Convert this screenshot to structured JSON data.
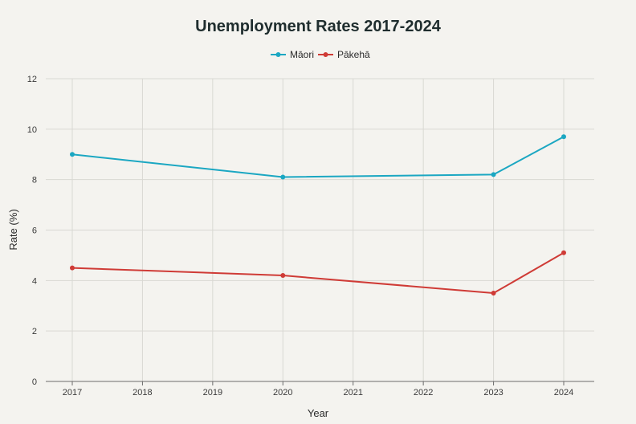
{
  "chart_data": {
    "type": "line",
    "title": "Unemployment Rates 2017-2024",
    "xlabel": "Year",
    "ylabel": "Rate (%)",
    "x": [
      2017,
      2018,
      2019,
      2020,
      2021,
      2022,
      2023,
      2024
    ],
    "x_tick_labels": [
      "2017",
      "2018",
      "2019",
      "2020",
      "2021",
      "2022",
      "2023",
      "2024"
    ],
    "ylim": [
      0,
      12
    ],
    "y_ticks": [
      0,
      2,
      4,
      6,
      8,
      10,
      12
    ],
    "y_tick_labels": [
      "0",
      "2",
      "4",
      "6",
      "8",
      "10",
      "12"
    ],
    "grid": true,
    "legend_position": "top-center",
    "series": [
      {
        "name": "Māori",
        "color": "#1ba7c2",
        "points": [
          {
            "x": 2017,
            "y": 9.0
          },
          {
            "x": 2020,
            "y": 8.1
          },
          {
            "x": 2023,
            "y": 8.2
          },
          {
            "x": 2024,
            "y": 9.7
          }
        ]
      },
      {
        "name": "Pākehā",
        "color": "#cf3b36",
        "points": [
          {
            "x": 2017,
            "y": 4.5
          },
          {
            "x": 2020,
            "y": 4.2
          },
          {
            "x": 2023,
            "y": 3.5
          },
          {
            "x": 2024,
            "y": 5.1
          }
        ]
      }
    ]
  }
}
